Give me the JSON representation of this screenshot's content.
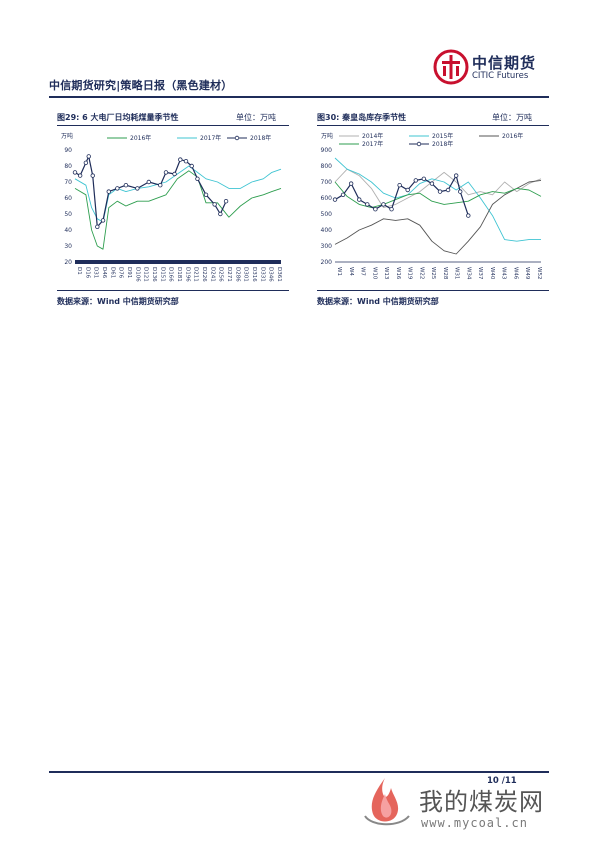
{
  "header": {
    "title": "中信期货研究|策略日报（黑色建材）",
    "logo_cn": "中信期货",
    "logo_en": "CITIC Futures"
  },
  "figures": [
    {
      "title": "图29: 6 大电厂日均耗煤量季节性",
      "unit": "单位：万吨",
      "source": "数据来源：Wind 中信期货研究部"
    },
    {
      "title": "图30: 秦皇岛库存季节性",
      "unit": "单位：万吨",
      "source": "数据来源：Wind 中信期货研究部"
    }
  ],
  "chart_data": [
    {
      "type": "line",
      "ylabel": "万吨",
      "ylim": [
        20,
        90
      ],
      "yticks": [
        "90",
        "80",
        "70",
        "60",
        "50",
        "40",
        "30",
        "20"
      ],
      "xticks": [
        "D1",
        "D16",
        "D31",
        "D46",
        "D61",
        "D76",
        "D91",
        "D106",
        "D121",
        "D136",
        "D151",
        "D166",
        "D181",
        "D196",
        "D211",
        "D226",
        "D241",
        "D256",
        "D271",
        "D286",
        "D301",
        "D316",
        "D331",
        "D346",
        "D361"
      ],
      "series": [
        {
          "name": "2016年",
          "color": "#2e9e4f",
          "marker": false,
          "values": [
            [
              1,
              66
            ],
            [
              20,
              62
            ],
            [
              30,
              40
            ],
            [
              40,
              30
            ],
            [
              50,
              28
            ],
            [
              60,
              54
            ],
            [
              75,
              58
            ],
            [
              90,
              55
            ],
            [
              110,
              58
            ],
            [
              130,
              58
            ],
            [
              160,
              62
            ],
            [
              180,
              72
            ],
            [
              200,
              77
            ],
            [
              215,
              73
            ],
            [
              230,
              57
            ],
            [
              250,
              57
            ],
            [
              270,
              48
            ],
            [
              290,
              55
            ],
            [
              310,
              60
            ],
            [
              330,
              62
            ],
            [
              345,
              64
            ],
            [
              361,
              66
            ]
          ]
        },
        {
          "name": "2017年",
          "color": "#3fc4d2",
          "marker": false,
          "values": [
            [
              1,
              72
            ],
            [
              20,
              68
            ],
            [
              30,
              54
            ],
            [
              40,
              47
            ],
            [
              50,
              45
            ],
            [
              60,
              62
            ],
            [
              75,
              66
            ],
            [
              90,
              64
            ],
            [
              110,
              66
            ],
            [
              130,
              67
            ],
            [
              160,
              70
            ],
            [
              180,
              75
            ],
            [
              200,
              80
            ],
            [
              215,
              76
            ],
            [
              230,
              72
            ],
            [
              250,
              70
            ],
            [
              270,
              66
            ],
            [
              290,
              66
            ],
            [
              310,
              70
            ],
            [
              330,
              72
            ],
            [
              345,
              76
            ],
            [
              361,
              78
            ]
          ]
        },
        {
          "name": "2018年",
          "color": "#1f2d5a",
          "marker": true,
          "values": [
            [
              1,
              76
            ],
            [
              10,
              74
            ],
            [
              20,
              82
            ],
            [
              25,
              86
            ],
            [
              32,
              74
            ],
            [
              40,
              42
            ],
            [
              50,
              46
            ],
            [
              60,
              64
            ],
            [
              75,
              66
            ],
            [
              90,
              68
            ],
            [
              110,
              66
            ],
            [
              130,
              70
            ],
            [
              150,
              68
            ],
            [
              160,
              76
            ],
            [
              175,
              75
            ],
            [
              185,
              84
            ],
            [
              195,
              83
            ],
            [
              205,
              80
            ],
            [
              215,
              72
            ],
            [
              230,
              62
            ],
            [
              245,
              56
            ],
            [
              255,
              50
            ],
            [
              265,
              58
            ]
          ]
        }
      ]
    },
    {
      "type": "line",
      "ylabel": "万吨",
      "ylim": [
        200,
        900
      ],
      "yticks": [
        "900",
        "800",
        "700",
        "600",
        "500",
        "400",
        "300",
        "200"
      ],
      "xticks": [
        "W1",
        "W4",
        "W7",
        "W10",
        "W13",
        "W16",
        "W19",
        "W22",
        "W25",
        "W28",
        "W31",
        "W34",
        "W37",
        "W40",
        "W43",
        "W46",
        "W49",
        "W52"
      ],
      "series": [
        {
          "name": "2014年",
          "color": "#b0b0b0",
          "marker": false,
          "values": [
            [
              1,
              700
            ],
            [
              4,
              780
            ],
            [
              7,
              740
            ],
            [
              10,
              660
            ],
            [
              13,
              540
            ],
            [
              16,
              560
            ],
            [
              19,
              600
            ],
            [
              22,
              640
            ],
            [
              25,
              700
            ],
            [
              28,
              760
            ],
            [
              31,
              700
            ],
            [
              34,
              620
            ],
            [
              37,
              640
            ],
            [
              40,
              620
            ],
            [
              43,
              700
            ],
            [
              46,
              640
            ],
            [
              49,
              690
            ],
            [
              52,
              720
            ]
          ]
        },
        {
          "name": "2015年",
          "color": "#3fc4d2",
          "marker": false,
          "values": [
            [
              1,
              850
            ],
            [
              4,
              780
            ],
            [
              7,
              750
            ],
            [
              10,
              700
            ],
            [
              13,
              630
            ],
            [
              16,
              600
            ],
            [
              19,
              620
            ],
            [
              22,
              690
            ],
            [
              25,
              720
            ],
            [
              28,
              700
            ],
            [
              31,
              650
            ],
            [
              34,
              700
            ],
            [
              37,
              600
            ],
            [
              40,
              490
            ],
            [
              43,
              340
            ],
            [
              46,
              330
            ],
            [
              49,
              340
            ],
            [
              52,
              340
            ]
          ]
        },
        {
          "name": "2016年",
          "color": "#555555",
          "marker": false,
          "values": [
            [
              1,
              310
            ],
            [
              4,
              350
            ],
            [
              7,
              400
            ],
            [
              10,
              430
            ],
            [
              13,
              470
            ],
            [
              16,
              460
            ],
            [
              19,
              470
            ],
            [
              22,
              430
            ],
            [
              25,
              330
            ],
            [
              28,
              270
            ],
            [
              31,
              250
            ],
            [
              34,
              330
            ],
            [
              37,
              420
            ],
            [
              40,
              560
            ],
            [
              43,
              620
            ],
            [
              46,
              660
            ],
            [
              49,
              700
            ],
            [
              52,
              710
            ]
          ]
        },
        {
          "name": "2017年",
          "color": "#2e9e4f",
          "marker": false,
          "values": [
            [
              1,
              700
            ],
            [
              4,
              610
            ],
            [
              7,
              560
            ],
            [
              10,
              540
            ],
            [
              13,
              560
            ],
            [
              16,
              590
            ],
            [
              19,
              620
            ],
            [
              22,
              630
            ],
            [
              25,
              580
            ],
            [
              28,
              560
            ],
            [
              31,
              570
            ],
            [
              34,
              580
            ],
            [
              37,
              620
            ],
            [
              40,
              640
            ],
            [
              43,
              630
            ],
            [
              46,
              660
            ],
            [
              49,
              650
            ],
            [
              52,
              610
            ]
          ]
        },
        {
          "name": "2018年",
          "color": "#1f2d5a",
          "marker": true,
          "values": [
            [
              1,
              590
            ],
            [
              3,
              620
            ],
            [
              5,
              690
            ],
            [
              7,
              590
            ],
            [
              9,
              560
            ],
            [
              11,
              530
            ],
            [
              13,
              560
            ],
            [
              15,
              530
            ],
            [
              17,
              680
            ],
            [
              19,
              650
            ],
            [
              21,
              710
            ],
            [
              23,
              720
            ],
            [
              25,
              690
            ],
            [
              27,
              640
            ],
            [
              29,
              650
            ],
            [
              31,
              740
            ],
            [
              32,
              640
            ],
            [
              34,
              490
            ]
          ]
        }
      ]
    }
  ],
  "footer": {
    "page": "10 /11",
    "watermark_cn": "我的煤炭网",
    "watermark_url": "www.mycoal.cn"
  }
}
